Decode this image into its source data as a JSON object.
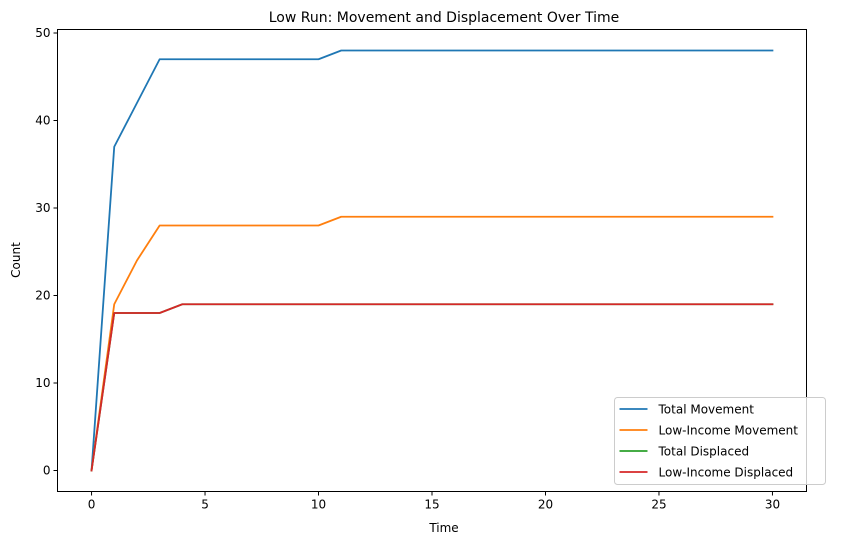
{
  "chart_data": {
    "type": "line",
    "title": "Low Run: Movement and Displacement Over Time",
    "xlabel": "Time",
    "ylabel": "Count",
    "xlim": [
      -1.5,
      31.5
    ],
    "ylim": [
      -2.4,
      50.4
    ],
    "xticks": [
      0,
      5,
      10,
      15,
      20,
      25,
      30
    ],
    "yticks": [
      0,
      10,
      20,
      30,
      40,
      50
    ],
    "grid": false,
    "legend_position": "lower-right",
    "x": [
      0,
      1,
      2,
      3,
      4,
      5,
      6,
      7,
      8,
      9,
      10,
      11,
      12,
      13,
      14,
      15,
      16,
      17,
      18,
      19,
      20,
      21,
      22,
      23,
      24,
      25,
      26,
      27,
      28,
      29,
      30
    ],
    "series": [
      {
        "name": "Total Movement",
        "color": "#1f77b4",
        "values": [
          0,
          37,
          42,
          47,
          47,
          47,
          47,
          47,
          47,
          47,
          47,
          48,
          48,
          48,
          48,
          48,
          48,
          48,
          48,
          48,
          48,
          48,
          48,
          48,
          48,
          48,
          48,
          48,
          48,
          48,
          48
        ]
      },
      {
        "name": "Low-Income Movement",
        "color": "#ff7f0e",
        "values": [
          0,
          19,
          24,
          28,
          28,
          28,
          28,
          28,
          28,
          28,
          28,
          29,
          29,
          29,
          29,
          29,
          29,
          29,
          29,
          29,
          29,
          29,
          29,
          29,
          29,
          29,
          29,
          29,
          29,
          29,
          29
        ]
      },
      {
        "name": "Total Displaced",
        "color": "#2ca02c",
        "values": [
          0,
          18,
          18,
          18,
          19,
          19,
          19,
          19,
          19,
          19,
          19,
          19,
          19,
          19,
          19,
          19,
          19,
          19,
          19,
          19,
          19,
          19,
          19,
          19,
          19,
          19,
          19,
          19,
          19,
          19,
          19
        ]
      },
      {
        "name": "Low-Income Displaced",
        "color": "#d62728",
        "values": [
          0,
          18,
          18,
          18,
          19,
          19,
          19,
          19,
          19,
          19,
          19,
          19,
          19,
          19,
          19,
          19,
          19,
          19,
          19,
          19,
          19,
          19,
          19,
          19,
          19,
          19,
          19,
          19,
          19,
          19,
          19
        ]
      }
    ]
  }
}
